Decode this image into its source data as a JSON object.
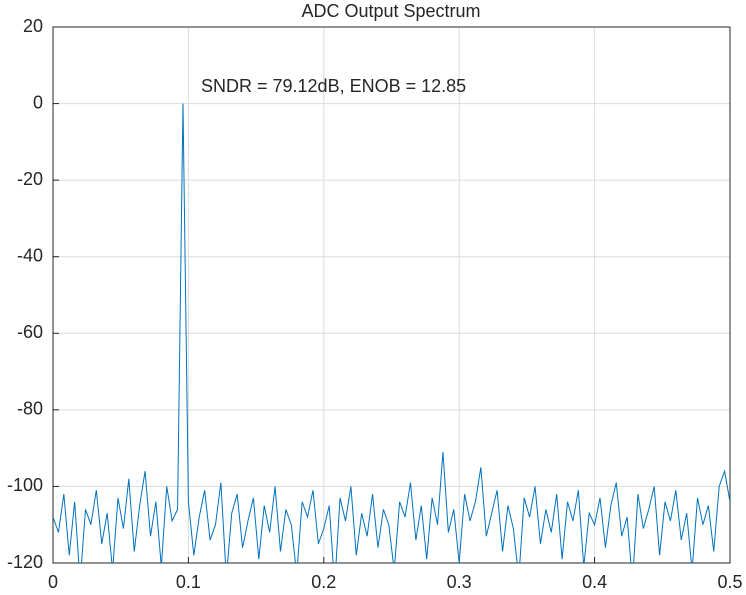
{
  "chart_data": {
    "type": "line",
    "title": "ADC Output Spectrum",
    "annotation": "SNDR = 79.12dB, ENOB = 12.85",
    "color": "#0072bd",
    "grid": true,
    "xlim": [
      0,
      0.5
    ],
    "xticks": [
      0,
      0.1,
      0.2,
      0.3,
      0.4,
      0.5
    ],
    "ylim": [
      -120,
      20
    ],
    "yticks": [
      20,
      0,
      -20,
      -40,
      -60,
      -80,
      -100,
      -120
    ],
    "x": [
      0,
      0.004,
      0.008,
      0.012,
      0.016,
      0.02,
      0.024,
      0.028,
      0.032,
      0.036,
      0.04,
      0.044,
      0.048,
      0.052,
      0.056,
      0.06,
      0.064,
      0.068,
      0.072,
      0.076,
      0.08,
      0.084,
      0.088,
      0.092,
      0.096,
      0.1,
      0.104,
      0.108,
      0.112,
      0.116,
      0.12,
      0.124,
      0.128,
      0.132,
      0.136,
      0.14,
      0.144,
      0.148,
      0.152,
      0.156,
      0.16,
      0.164,
      0.168,
      0.172,
      0.176,
      0.18,
      0.184,
      0.188,
      0.192,
      0.196,
      0.2,
      0.204,
      0.208,
      0.212,
      0.216,
      0.22,
      0.224,
      0.228,
      0.232,
      0.236,
      0.24,
      0.244,
      0.248,
      0.252,
      0.256,
      0.26,
      0.264,
      0.268,
      0.272,
      0.276,
      0.28,
      0.284,
      0.288,
      0.292,
      0.296,
      0.3,
      0.304,
      0.308,
      0.312,
      0.316,
      0.32,
      0.324,
      0.328,
      0.332,
      0.336,
      0.34,
      0.344,
      0.348,
      0.352,
      0.356,
      0.36,
      0.364,
      0.368,
      0.372,
      0.376,
      0.38,
      0.384,
      0.388,
      0.392,
      0.396,
      0.4,
      0.404,
      0.408,
      0.412,
      0.416,
      0.42,
      0.424,
      0.428,
      0.432,
      0.436,
      0.44,
      0.444,
      0.448,
      0.452,
      0.456,
      0.46,
      0.464,
      0.468,
      0.472,
      0.476,
      0.48,
      0.484,
      0.488,
      0.492,
      0.496,
      0.5
    ],
    "values": [
      -108,
      -112,
      -102,
      -118,
      -104,
      -125,
      -106,
      -110,
      -101,
      -115,
      -107,
      -122,
      -103,
      -111,
      -98,
      -117,
      -105,
      -96,
      -113,
      -104,
      -121,
      -100,
      -109,
      -106,
      0,
      -104,
      -118,
      -108,
      -101,
      -114,
      -110,
      -99,
      -124,
      -107,
      -102,
      -116,
      -109,
      -103,
      -119,
      -105,
      -112,
      -100,
      -117,
      -106,
      -110,
      -123,
      -104,
      -108,
      -101,
      -115,
      -111,
      -105,
      -126,
      -103,
      -109,
      -100,
      -118,
      -107,
      -113,
      -102,
      -116,
      -106,
      -110,
      -122,
      -104,
      -108,
      -99,
      -114,
      -105,
      -119,
      -103,
      -110,
      -91,
      -112,
      -106,
      -120,
      -102,
      -109,
      -104,
      -95,
      -113,
      -107,
      -101,
      -117,
      -105,
      -111,
      -124,
      -103,
      -108,
      -100,
      -115,
      -106,
      -112,
      -102,
      -119,
      -104,
      -109,
      -101,
      -121,
      -107,
      -110,
      -103,
      -116,
      -105,
      -99,
      -113,
      -108,
      -125,
      -102,
      -111,
      -106,
      -100,
      -118,
      -104,
      -109,
      -101,
      -114,
      -107,
      -122,
      -103,
      -110,
      -105,
      -117,
      -100,
      -96,
      -104
    ]
  }
}
